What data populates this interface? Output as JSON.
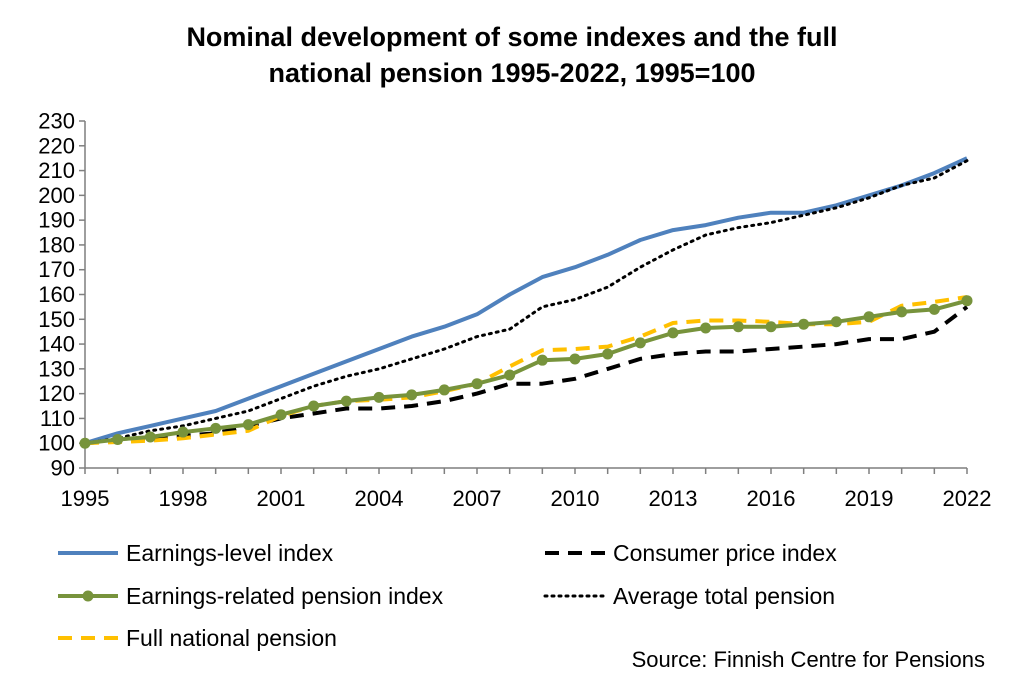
{
  "chart_data": {
    "type": "line",
    "title_line1": "Nominal development of some indexes and the full",
    "title_line2": "national pension 1995-2022, 1995=100",
    "xlabel": "",
    "ylabel": "",
    "xlim": [
      1995,
      2022
    ],
    "ylim": [
      90,
      230
    ],
    "x_ticks": [
      "1995",
      "1998",
      "2001",
      "2004",
      "2007",
      "2010",
      "2013",
      "2016",
      "2019",
      "2022"
    ],
    "y_ticks": [
      "90",
      "100",
      "110",
      "120",
      "130",
      "140",
      "150",
      "160",
      "170",
      "180",
      "190",
      "200",
      "210",
      "220",
      "230"
    ],
    "grid": false,
    "legend_position": "bottom",
    "x": [
      1995,
      1996,
      1997,
      1998,
      1999,
      2000,
      2001,
      2002,
      2003,
      2004,
      2005,
      2006,
      2007,
      2008,
      2009,
      2010,
      2011,
      2012,
      2013,
      2014,
      2015,
      2016,
      2017,
      2018,
      2019,
      2020,
      2021,
      2022
    ],
    "series": [
      {
        "name": "Earnings-level index",
        "color": "#4f81bd",
        "style": "solid",
        "values": [
          100,
          104,
          107,
          110,
          113,
          118,
          123,
          128,
          133,
          138,
          143,
          147,
          152,
          160,
          167,
          171,
          176,
          182,
          186,
          188,
          191,
          193,
          193,
          196,
          200,
          204,
          209,
          215
        ]
      },
      {
        "name": "Consumer price index",
        "color": "#000000",
        "style": "dashed",
        "values": [
          100,
          101,
          102,
          103,
          104,
          107,
          110,
          112,
          114,
          114,
          115,
          117,
          120,
          124,
          124,
          126,
          130,
          134,
          136,
          137,
          137,
          138,
          139,
          140,
          142,
          142,
          145,
          155
        ]
      },
      {
        "name": "Earnings-related pension index",
        "color": "#77933c",
        "style": "solid-markers",
        "values": [
          100,
          101.5,
          102.5,
          104.5,
          106,
          107.5,
          111.5,
          115,
          117,
          118.5,
          119.5,
          121.5,
          124,
          127.5,
          133.5,
          134,
          136,
          140.5,
          144.5,
          146.5,
          147,
          147,
          148,
          149,
          151,
          153,
          154,
          157.5
        ]
      },
      {
        "name": "Average total pension",
        "color": "#000000",
        "style": "dotted",
        "values": [
          100,
          102,
          105,
          107,
          110,
          113,
          118,
          123,
          127,
          130,
          134,
          138,
          143,
          146,
          155,
          158,
          163,
          171,
          178,
          184,
          187,
          189,
          192,
          195,
          199,
          204,
          207,
          214
        ]
      },
      {
        "name": "Full national pension",
        "color": "#ffc000",
        "style": "dashed",
        "values": [
          100,
          100.5,
          101,
          102,
          103.5,
          105,
          111,
          115,
          117,
          117.5,
          118.5,
          121,
          124,
          131,
          137.5,
          138,
          139,
          143,
          148.5,
          149.5,
          149.5,
          149,
          148,
          148,
          149,
          155.5,
          157,
          159
        ]
      }
    ],
    "source": "Source: Finnish Centre for Pensions"
  }
}
